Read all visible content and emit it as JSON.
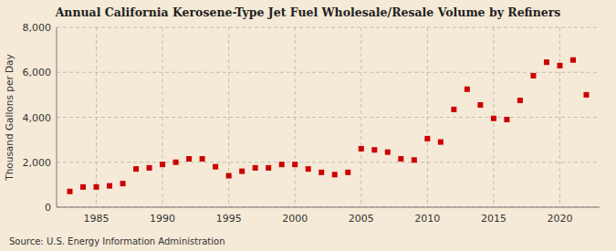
{
  "chart_data": {
    "type": "scatter",
    "title": "Annual California Kerosene-Type Jet Fuel Wholesale/Resale Volume by Refiners",
    "y_label": "Thousand Gallons per Day",
    "annotations": [
      "Source: U.S. Energy Information Administration"
    ],
    "x": [
      1983,
      1984,
      1985,
      1986,
      1987,
      1988,
      1989,
      1990,
      1991,
      1992,
      1993,
      1994,
      1995,
      1996,
      1997,
      1998,
      1999,
      2000,
      2001,
      2002,
      2003,
      2004,
      2005,
      2006,
      2007,
      2008,
      2009,
      2010,
      2011,
      2012,
      2013,
      2014,
      2015,
      2016,
      2017,
      2018,
      2019,
      2020,
      2021,
      2022
    ],
    "values": [
      700,
      900,
      900,
      950,
      1050,
      1700,
      1750,
      1900,
      2000,
      2150,
      2150,
      1800,
      1400,
      1600,
      1750,
      1750,
      1900,
      1900,
      1700,
      1550,
      1450,
      1550,
      2600,
      2550,
      2450,
      2150,
      2100,
      3050,
      2900,
      4350,
      5250,
      4550,
      3950,
      3900,
      4750,
      5850,
      6450,
      6300,
      6550,
      5000
    ],
    "color": "#cc0000",
    "marker": "square",
    "grid": true,
    "xlim": [
      1982,
      2023
    ],
    "xticks": [
      1985,
      1990,
      1995,
      2000,
      2005,
      2010,
      2015,
      2020
    ],
    "ylim": [
      0,
      8000
    ],
    "yticks": [
      0,
      {
        "value": 2000,
        "label": "2,000"
      },
      {
        "value": 4000,
        "label": "4,000"
      },
      {
        "value": 6000,
        "label": "6,000"
      },
      {
        "value": 8000,
        "label": "8,000"
      }
    ]
  }
}
